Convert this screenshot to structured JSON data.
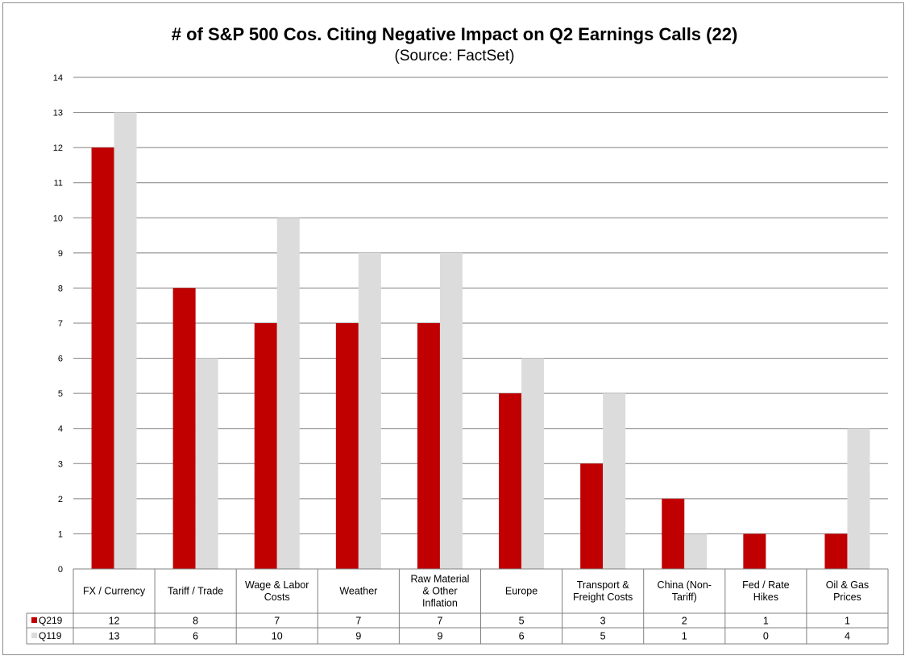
{
  "chart_data": {
    "type": "bar",
    "title": "# of S&P 500 Cos. Citing Negative Impact on Q2 Earnings Calls (22)",
    "subtitle": "(Source: FactSet)",
    "xlabel": "",
    "ylabel": "",
    "ylim": [
      0,
      14
    ],
    "yticks": [
      "0",
      "1",
      "2",
      "3",
      "4",
      "5",
      "6",
      "7",
      "8",
      "9",
      "10",
      "11",
      "12",
      "13",
      "14"
    ],
    "grid": true,
    "categories": [
      [
        "FX / Currency"
      ],
      [
        "Tariff / Trade"
      ],
      [
        "Wage & Labor",
        "Costs"
      ],
      [
        "Weather"
      ],
      [
        "Raw Material",
        "& Other",
        "Inflation"
      ],
      [
        "Europe"
      ],
      [
        "Transport &",
        "Freight Costs"
      ],
      [
        "China (Non-",
        "Tariff)"
      ],
      [
        "Fed / Rate",
        "Hikes"
      ],
      [
        "Oil & Gas",
        "Prices"
      ]
    ],
    "series": [
      {
        "name": "Q219",
        "color": "#c00000",
        "values": [
          12,
          8,
          7,
          7,
          7,
          5,
          3,
          2,
          1,
          1
        ],
        "labels": [
          "12",
          "8",
          "7",
          "7",
          "7",
          "5",
          "3",
          "2",
          "1",
          "1"
        ]
      },
      {
        "name": "Q119",
        "color": "#dcdcdc",
        "values": [
          13,
          6,
          10,
          9,
          9,
          6,
          5,
          1,
          0,
          4
        ],
        "labels": [
          "13",
          "6",
          "10",
          "9",
          "9",
          "6",
          "5",
          "1",
          "0",
          "4"
        ]
      }
    ]
  }
}
